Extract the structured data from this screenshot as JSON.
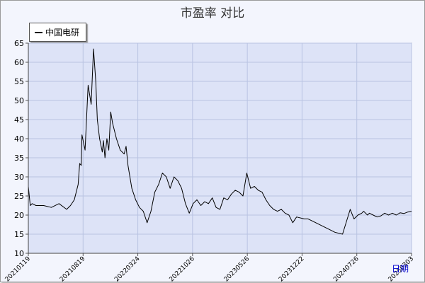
{
  "chart_data": {
    "type": "line",
    "title": "市盈率  对比",
    "ylim": [
      10,
      65
    ],
    "yticks": [
      10,
      15,
      20,
      25,
      30,
      35,
      40,
      45,
      50,
      55,
      60,
      65
    ],
    "xticks": [
      "20210119",
      "20210819",
      "20220324",
      "20221026",
      "20230526",
      "20231222",
      "20240726",
      "20250303"
    ],
    "x_unit": "日期",
    "grid": true,
    "legend_position": "top-left",
    "colors": {
      "plot_bg": "#dde3f7",
      "grid": "#b9c3e2",
      "line": "#000000",
      "tick_label": "#000000"
    },
    "series": [
      {
        "name": "中国电研",
        "x": [
          0.0,
          0.005,
          0.01,
          0.02,
          0.04,
          0.06,
          0.08,
          0.1,
          0.11,
          0.12,
          0.13,
          0.134,
          0.138,
          0.14,
          0.148,
          0.156,
          0.164,
          0.17,
          0.176,
          0.18,
          0.186,
          0.19,
          0.193,
          0.196,
          0.2,
          0.205,
          0.21,
          0.215,
          0.22,
          0.23,
          0.24,
          0.25,
          0.255,
          0.26,
          0.265,
          0.27,
          0.28,
          0.29,
          0.3,
          0.31,
          0.32,
          0.33,
          0.34,
          0.35,
          0.36,
          0.37,
          0.38,
          0.39,
          0.4,
          0.41,
          0.42,
          0.43,
          0.44,
          0.45,
          0.46,
          0.47,
          0.48,
          0.49,
          0.5,
          0.51,
          0.52,
          0.53,
          0.54,
          0.55,
          0.56,
          0.57,
          0.58,
          0.59,
          0.6,
          0.61,
          0.62,
          0.63,
          0.64,
          0.65,
          0.66,
          0.67,
          0.68,
          0.69,
          0.7,
          0.72,
          0.73,
          0.74,
          0.75,
          0.77,
          0.79,
          0.8,
          0.82,
          0.84,
          0.85,
          0.86,
          0.87,
          0.875,
          0.88,
          0.885,
          0.89,
          0.9,
          0.91,
          0.92,
          0.93,
          0.94,
          0.95,
          0.96,
          0.97,
          0.98,
          0.99,
          1.0
        ],
        "values": [
          27.5,
          22.5,
          23.0,
          22.5,
          22.5,
          22.0,
          23.0,
          21.5,
          22.5,
          24.0,
          28.0,
          33.5,
          33.0,
          41.0,
          37.0,
          54.0,
          49.0,
          63.5,
          55.0,
          45.0,
          40.0,
          38.0,
          36.5,
          39.5,
          35.0,
          40.0,
          37.0,
          47.0,
          44.0,
          40.0,
          37.0,
          36.0,
          38.0,
          33.0,
          30.0,
          27.0,
          24.0,
          22.0,
          21.0,
          18.0,
          21.0,
          26.0,
          28.0,
          31.0,
          30.0,
          27.0,
          30.0,
          29.0,
          27.0,
          23.0,
          20.5,
          23.0,
          24.0,
          22.5,
          23.5,
          23.0,
          24.5,
          22.0,
          21.5,
          24.5,
          24.0,
          25.5,
          26.5,
          26.0,
          25.0,
          31.0,
          27.0,
          27.5,
          26.5,
          26.0,
          24.0,
          22.5,
          21.5,
          21.0,
          21.5,
          20.5,
          20.0,
          18.0,
          19.5,
          19.0,
          19.0,
          18.5,
          18.0,
          17.0,
          16.0,
          15.5,
          15.0,
          21.5,
          19.0,
          20.0,
          20.5,
          21.0,
          20.5,
          20.0,
          20.5,
          20.0,
          19.5,
          19.8,
          20.5,
          20.0,
          20.5,
          20.0,
          20.6,
          20.4,
          20.8,
          21.0
        ]
      }
    ]
  }
}
